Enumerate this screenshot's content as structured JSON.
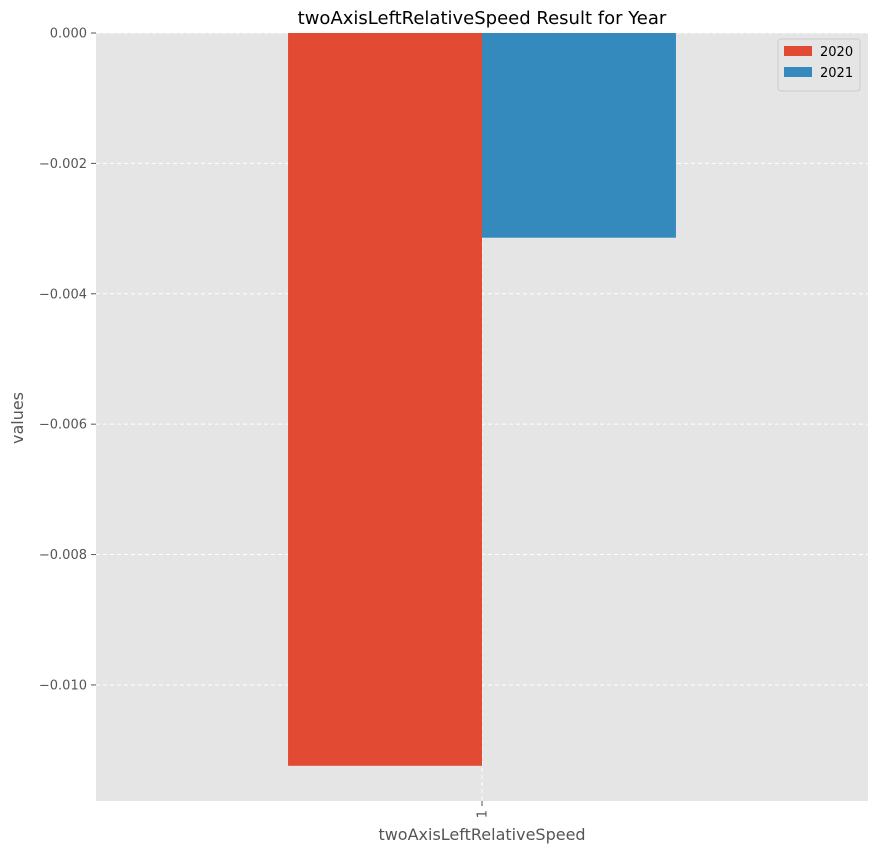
{
  "chart_data": {
    "type": "bar",
    "title": "twoAxisLeftRelativeSpeed Result for Year",
    "xlabel": "twoAxisLeftRelativeSpeed",
    "ylabel": "values",
    "categories": [
      "1"
    ],
    "series": [
      {
        "name": "2020",
        "values": [
          -0.01124
        ],
        "color": "#E24A33"
      },
      {
        "name": "2021",
        "values": [
          -0.00314
        ],
        "color": "#348ABD"
      }
    ],
    "ylim": [
      -0.01178,
      0.0
    ],
    "yticks": [
      0.0,
      -0.002,
      -0.004,
      -0.006,
      -0.008,
      -0.01
    ],
    "ytick_labels": [
      "0.000",
      "−0.002",
      "−0.004",
      "−0.006",
      "−0.008",
      "−0.010"
    ],
    "grid": true,
    "legend_position": "top-right",
    "colors": {
      "plot_background": "#E5E5E5",
      "grid": "#FFFFFF",
      "tick_text": "#555555"
    }
  }
}
